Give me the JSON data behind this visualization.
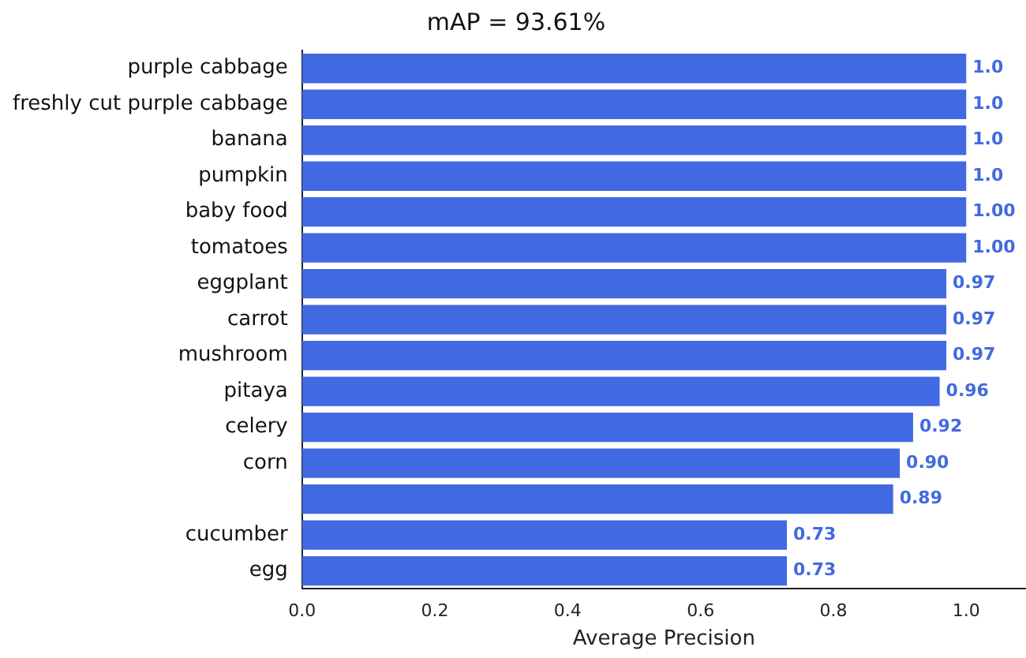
{
  "chart_data": {
    "type": "bar",
    "orientation": "horizontal",
    "title": "mAP = 93.61%",
    "xlabel": "Average Precision",
    "categories": [
      "purple cabbage",
      "freshly cut purple cabbage",
      "banana",
      "pumpkin",
      "baby food",
      "tomatoes",
      "eggplant",
      "carrot",
      "mushroom",
      "pitaya",
      "celery",
      "corn",
      null,
      "cucumber",
      "egg"
    ],
    "values": [
      1.0,
      1.0,
      1.0,
      1.0,
      1.0,
      1.0,
      0.97,
      0.97,
      0.97,
      0.96,
      0.92,
      0.9,
      0.89,
      0.73,
      0.73
    ],
    "value_labels": [
      "1.0",
      "1.0",
      "1.0",
      "1.0",
      "1.00",
      "1.00",
      "0.97",
      "0.97",
      "0.97",
      "0.96",
      "0.92",
      "0.90",
      "0.89",
      "0.73",
      "0.73"
    ],
    "color": "#4169e1",
    "xlim": [
      0,
      1.09
    ],
    "xticks": [
      {
        "value": 0,
        "label": "0.0"
      },
      {
        "value": 0.2,
        "label": "0.2"
      },
      {
        "value": 0.4,
        "label": "0.4"
      },
      {
        "value": 0.6,
        "label": "0.6"
      },
      {
        "value": 0.8,
        "label": "0.8"
      },
      {
        "value": 1,
        "label": "1.0"
      }
    ],
    "grid": false,
    "legend": false
  }
}
